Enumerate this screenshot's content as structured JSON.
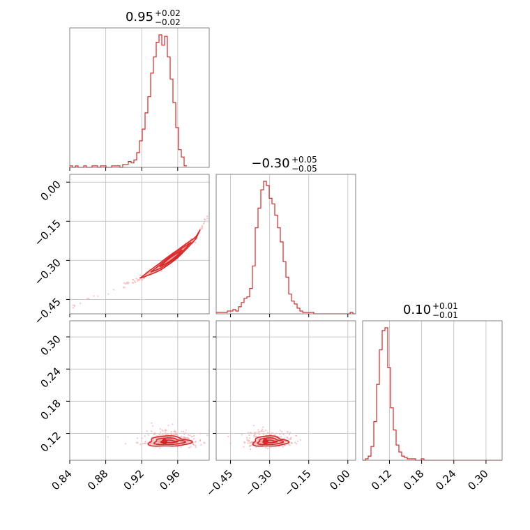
{
  "chart_data": {
    "type": "corner",
    "colors": {
      "line": "#d62728",
      "fill": "#f0a3a4",
      "point": "#f4b0b1",
      "grid": "#c8c8c8",
      "frame": "#808080"
    },
    "parameters": [
      {
        "title_value": "0.95",
        "title_plus": "+0.02",
        "title_minus": "−0.02",
        "range": [
          0.84,
          0.995
        ]
      },
      {
        "title_value": "−0.30",
        "title_plus": "+0.05",
        "title_minus": "−0.05",
        "range": [
          -0.505,
          0.03
        ]
      },
      {
        "title_value": "0.10",
        "title_plus": "+0.01",
        "title_minus": "−0.01",
        "range": [
          0.07,
          0.33
        ]
      }
    ],
    "ticks": {
      "p0": {
        "values": [
          0.84,
          0.88,
          0.92,
          0.96
        ],
        "labels": [
          "0.84",
          "0.88",
          "0.92",
          "0.96"
        ]
      },
      "p1": {
        "values": [
          -0.45,
          -0.3,
          -0.15,
          0.0
        ],
        "labels": [
          "−0.45",
          "−0.30",
          "−0.15",
          "0.00"
        ]
      },
      "p2": {
        "values": [
          0.12,
          0.18,
          0.24,
          0.3
        ],
        "labels": [
          "0.12",
          "0.18",
          "0.24",
          "0.30"
        ]
      }
    },
    "histograms": [
      {
        "parameter": 0,
        "edges_start": 0.84,
        "bin_width": 0.0031,
        "counts": [
          1,
          0,
          1,
          0,
          0,
          1,
          0,
          0,
          1,
          1,
          0,
          1,
          1,
          0,
          0,
          1,
          1,
          1,
          0,
          2,
          2,
          4,
          3,
          5,
          10,
          18,
          26,
          37,
          48,
          64,
          75,
          85,
          90,
          83,
          89,
          75,
          60,
          44,
          27,
          12,
          7,
          1
        ]
      },
      {
        "parameter": 1,
        "edges_start": -0.505,
        "bin_width": 0.0107,
        "counts": [
          1,
          1,
          1,
          1,
          2,
          2,
          3,
          2,
          5,
          8,
          11,
          12,
          18,
          34,
          61,
          75,
          88,
          94,
          91,
          82,
          78,
          70,
          61,
          51,
          37,
          26,
          14,
          9,
          7,
          4,
          2,
          1,
          1,
          1,
          1,
          0,
          0,
          0,
          0,
          0,
          0,
          0,
          0,
          0,
          0,
          0,
          0,
          0,
          1,
          0
        ]
      },
      {
        "parameter": 2,
        "edges_start": 0.07,
        "bin_width": 0.0052,
        "counts": [
          0,
          1,
          3,
          10,
          28,
          55,
          80,
          94,
          96,
          67,
          38,
          22,
          11,
          6,
          3,
          2,
          1,
          1,
          1,
          0,
          0,
          1,
          0,
          0,
          0,
          0,
          0,
          0,
          0,
          0,
          0,
          0,
          0,
          0,
          0,
          0,
          0,
          0,
          0,
          0,
          0,
          0,
          0,
          0,
          0,
          0,
          0,
          0,
          0,
          0
        ]
      }
    ],
    "correlation_p0_p1": {
      "curve_x": [
        0.84,
        0.86,
        0.88,
        0.9,
        0.92,
        0.94,
        0.96,
        0.97,
        0.98,
        0.995
      ],
      "curve_y": [
        -0.485,
        -0.455,
        -0.425,
        -0.395,
        -0.365,
        -0.325,
        -0.275,
        -0.245,
        -0.215,
        -0.115
      ]
    },
    "center_p0_p2": [
      0.95,
      0.105
    ],
    "center_p1_p2": [
      -0.3,
      0.105
    ]
  }
}
